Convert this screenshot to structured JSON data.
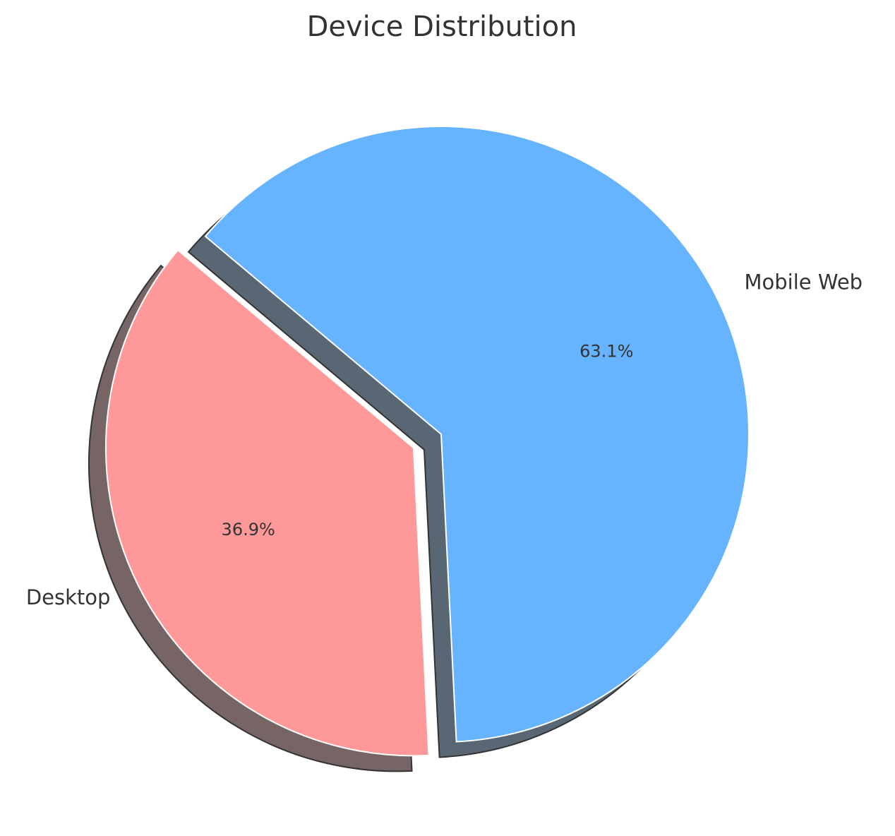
{
  "chart_data": {
    "type": "pie",
    "title": "Device Distribution",
    "categories": [
      "Desktop",
      "Mobile Web"
    ],
    "values": [
      36.9,
      63.1
    ],
    "value_labels": [
      "36.9%",
      "63.1%"
    ],
    "colors": [
      "#ff9999",
      "#66b3ff"
    ],
    "shadow": true
  }
}
